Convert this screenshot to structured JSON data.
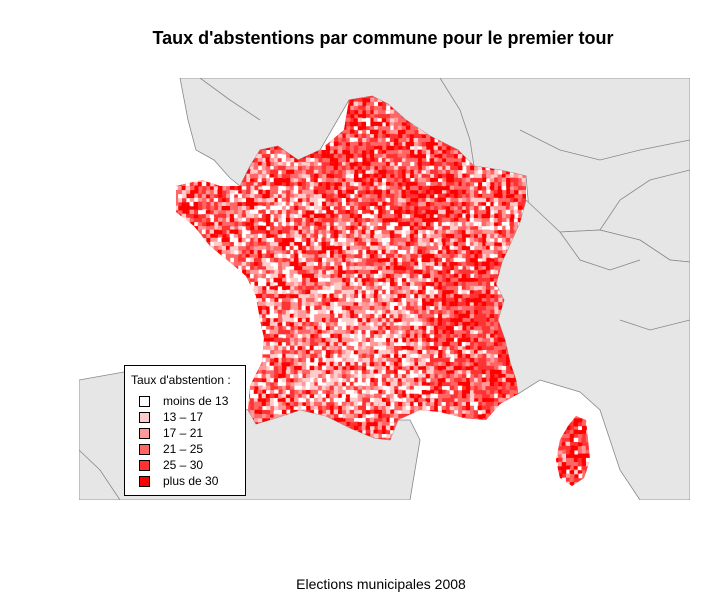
{
  "map": {
    "title": "Taux d'abstentions par commune pour le premier tour",
    "caption": "Elections municipales 2008",
    "background_color": "#e6e6e6",
    "border_color": "#888888",
    "legend": {
      "title": "Taux d'abstention :",
      "items": [
        {
          "label": "moins de 13",
          "color": "#ffffff"
        },
        {
          "label": "13 – 17",
          "color": "#ffcccc"
        },
        {
          "label": "17 – 21",
          "color": "#ff9999"
        },
        {
          "label": "21 – 25",
          "color": "#ff6666"
        },
        {
          "label": "25 – 30",
          "color": "#ff3333"
        },
        {
          "label": "plus de 30",
          "color": "#ff0000"
        }
      ]
    }
  }
}
